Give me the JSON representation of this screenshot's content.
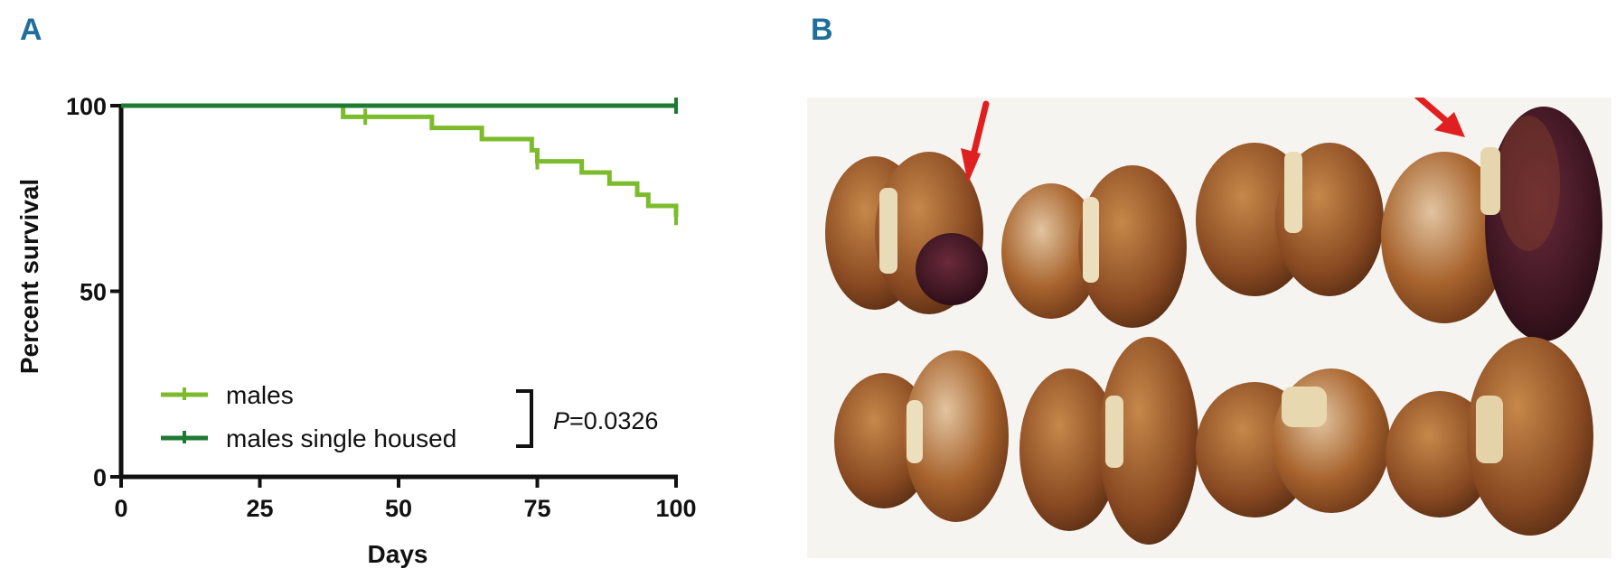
{
  "panels": {
    "a_label": "A",
    "b_label": "B"
  },
  "chart_data": {
    "type": "line",
    "subtype": "kaplan-meier step",
    "title": "",
    "xlabel": "Days",
    "ylabel": "Percent survival",
    "xlim": [
      0,
      100
    ],
    "ylim": [
      0,
      100
    ],
    "xticks": [
      0,
      25,
      50,
      75,
      100
    ],
    "yticks": [
      0,
      50,
      100
    ],
    "grid": false,
    "legend_position": "bottom-left",
    "series": [
      {
        "name": "males",
        "color": "#7cbc2c",
        "steps": [
          [
            0,
            100
          ],
          [
            40,
            97
          ],
          [
            56,
            94
          ],
          [
            65,
            91
          ],
          [
            74,
            88
          ],
          [
            75,
            85
          ],
          [
            83,
            82
          ],
          [
            88,
            79
          ],
          [
            93,
            76
          ],
          [
            95,
            73
          ],
          [
            100,
            70
          ]
        ],
        "censored_x": [
          44,
          75,
          100
        ]
      },
      {
        "name": "males single housed",
        "color": "#1e7a32",
        "steps": [
          [
            0,
            100
          ],
          [
            100,
            100
          ]
        ],
        "censored_x": [
          100
        ]
      }
    ],
    "annotations": {
      "p_symbol": "P",
      "p_value": "=0.0326"
    }
  },
  "photo": {
    "arrow_color": "#e02020"
  }
}
